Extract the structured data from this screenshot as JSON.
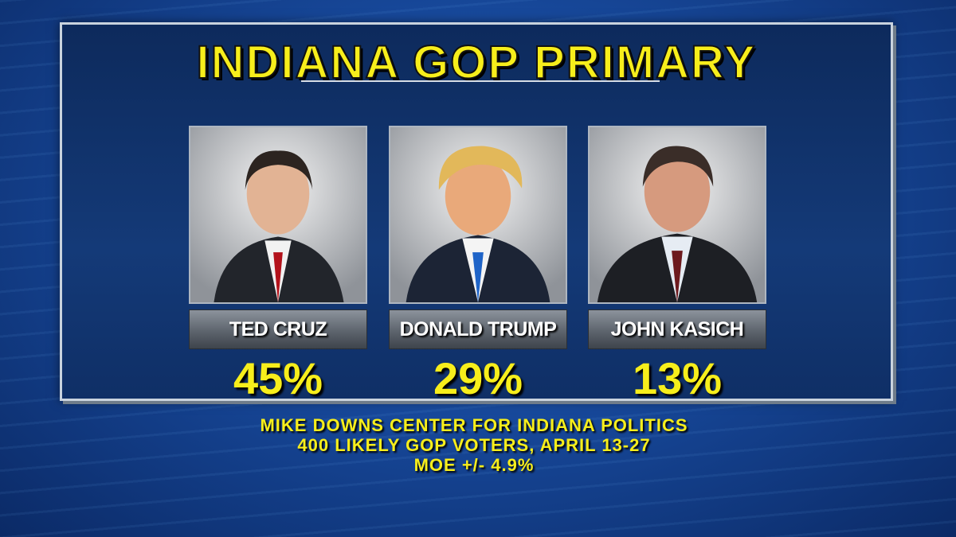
{
  "title": "INDIANA GOP PRIMARY",
  "candidates": [
    {
      "name": "TED CRUZ",
      "result": "45%"
    },
    {
      "name": "DONALD TRUMP",
      "result": "29%"
    },
    {
      "name": "JOHN KASICH",
      "result": "13%"
    }
  ],
  "source": [
    "MIKE DOWNS CENTER FOR INDIANA POLITICS",
    "400 LIKELY GOP VOTERS, APRIL 13-27",
    "MOE +/- 4.9%"
  ]
}
